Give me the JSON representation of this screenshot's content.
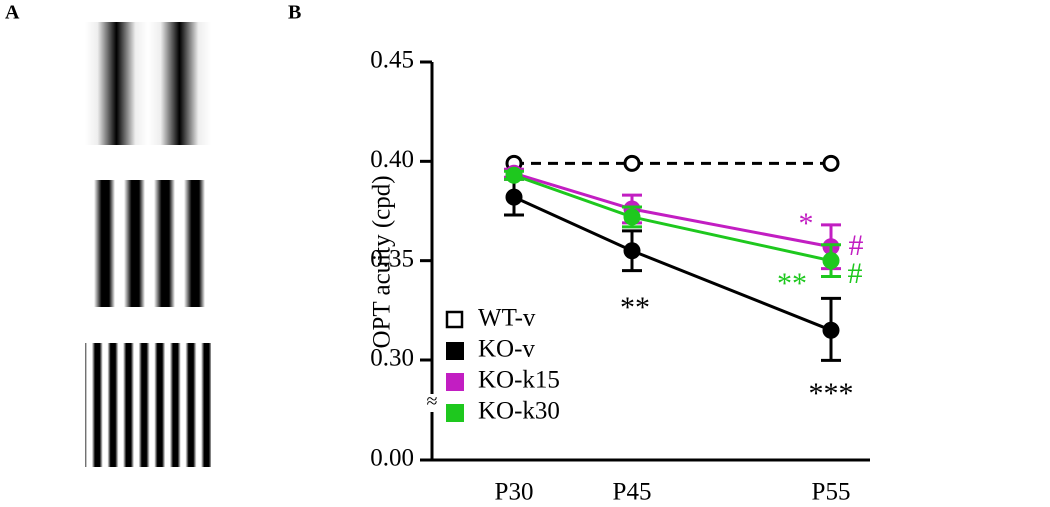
{
  "panels": [
    "A",
    "B"
  ],
  "chart_data": {
    "type": "line",
    "ylabel": "OPT acuity (cpd)",
    "categories": [
      "P30",
      "P45",
      "P55"
    ],
    "ylim": [
      0,
      0.45
    ],
    "ybreak": [
      0,
      0.3
    ],
    "yticks": [
      {
        "value": 0,
        "label": "0.00"
      },
      {
        "value": 0.3,
        "label": "0.30"
      },
      0.35,
      {
        "value": 0.4,
        "label": "0.40"
      },
      0.45
    ],
    "series": [
      {
        "name": "WT-v",
        "color": "#000000",
        "marker": "open",
        "dashed": true,
        "values": [
          0.399,
          0.399,
          0.399
        ]
      },
      {
        "name": "KO-v",
        "color": "#000000",
        "marker": "filled",
        "values": [
          0.382,
          0.355,
          0.315
        ],
        "errors": [
          0.009,
          0.01,
          0.016
        ]
      },
      {
        "name": "KO-k15",
        "color": "#c21ec2",
        "marker": "filled",
        "values": [
          0.394,
          0.376,
          0.357
        ],
        "errors": [
          0.002,
          0.007,
          0.011
        ]
      },
      {
        "name": "KO-k30",
        "color": "#1ec81e",
        "marker": "filled",
        "values": [
          0.393,
          0.372,
          0.35
        ],
        "errors": [
          0.002,
          0.005,
          0.008
        ]
      }
    ],
    "annotations": [
      {
        "text": "**",
        "color": "#000000"
      },
      {
        "text": "***",
        "color": "#000000"
      },
      {
        "text": "*",
        "color": "#c21ec2"
      },
      {
        "text": "#",
        "color": "#c21ec2"
      },
      {
        "text": "**",
        "color": "#1ec81e"
      },
      {
        "text": "#",
        "color": "#1ec81e"
      }
    ]
  }
}
